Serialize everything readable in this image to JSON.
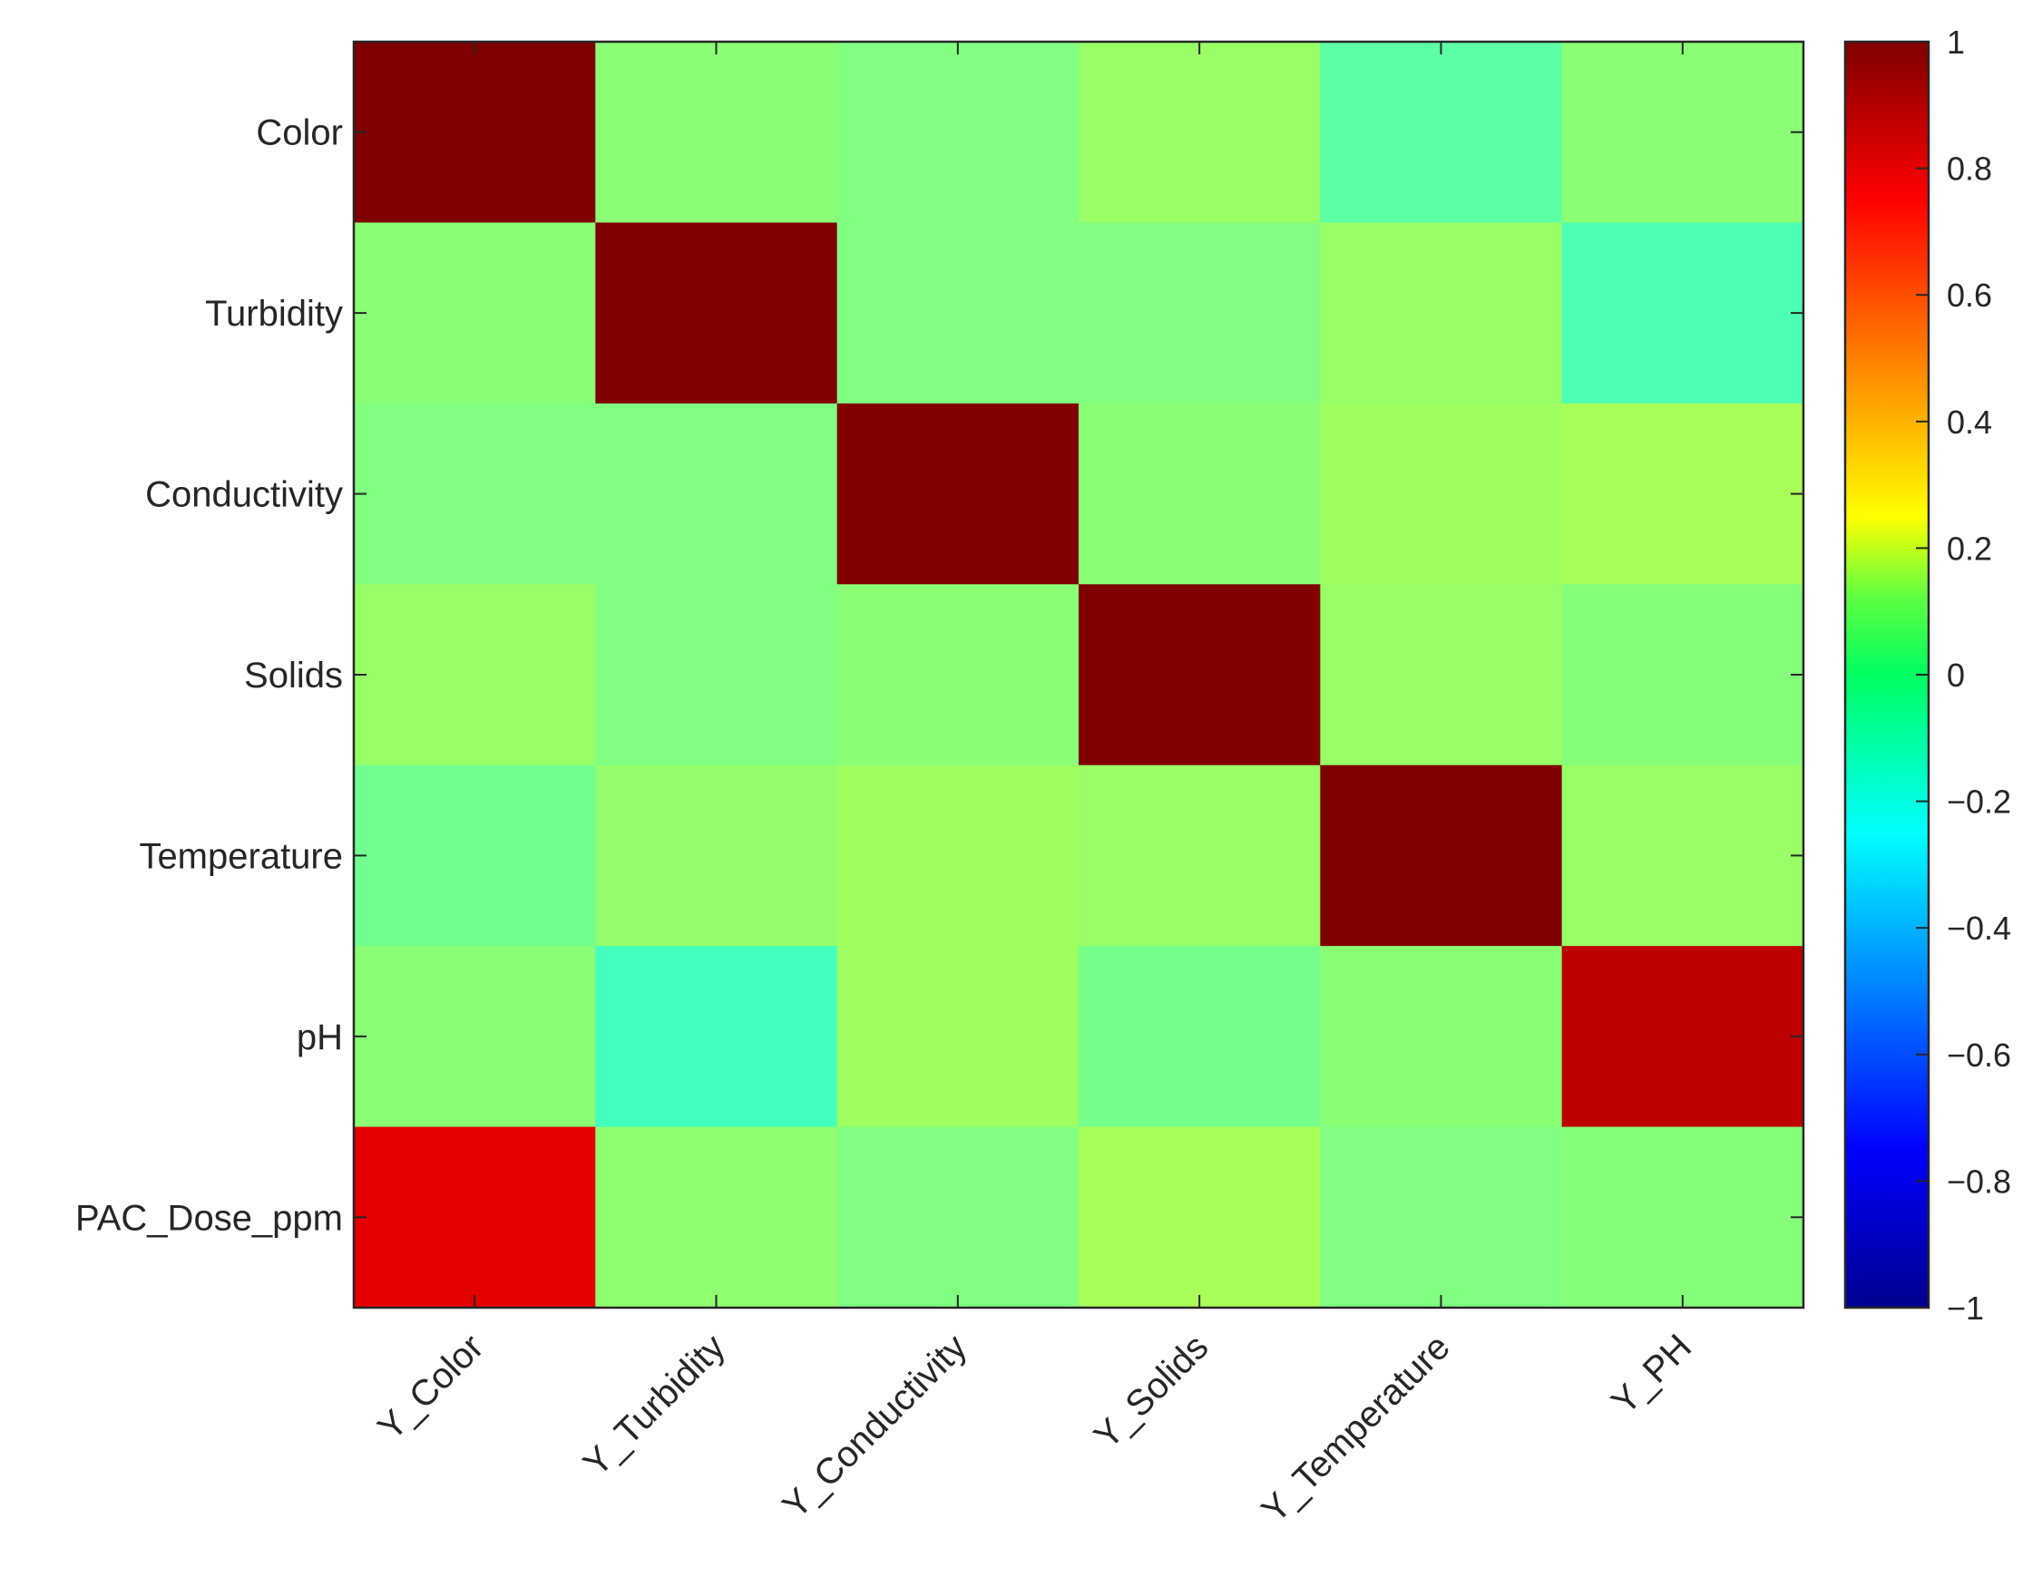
{
  "chart_data": {
    "type": "heatmap",
    "title": "",
    "xlabel": "",
    "ylabel": "",
    "rows": [
      "Color",
      "Turbidity",
      "Conductivity",
      "Solids",
      "Temperature",
      "pH",
      "PAC_Dose_ppm"
    ],
    "columns": [
      "Y_Color",
      "Y_Turbidity",
      "Y_Conductivity",
      "Y_Solids",
      "Y_Temperature",
      "Y_PH"
    ],
    "values": [
      [
        1.0,
        0.02,
        0.0,
        0.05,
        -0.07,
        0.02
      ],
      [
        0.02,
        1.0,
        0.0,
        0.0,
        0.05,
        -0.1
      ],
      [
        0.0,
        0.0,
        1.0,
        0.02,
        0.06,
        0.08
      ],
      [
        0.05,
        0.0,
        0.02,
        1.0,
        0.05,
        0.01
      ],
      [
        -0.03,
        0.04,
        0.06,
        0.05,
        1.0,
        0.05
      ],
      [
        0.02,
        -0.12,
        0.06,
        -0.02,
        0.02,
        0.88
      ],
      [
        0.8,
        0.03,
        0.0,
        0.08,
        0.0,
        0.01
      ]
    ],
    "colorbar": {
      "colormap": "jet",
      "clim": [
        -1,
        1
      ],
      "ticks": [
        1,
        0.8,
        0.6,
        0.4,
        0.2,
        0,
        -0.2,
        -0.4,
        -0.6,
        -0.8,
        -1
      ],
      "tick_labels": [
        "1",
        "0.8",
        "0.6",
        "0.4",
        "0.2",
        "0",
        "−0.2",
        "−0.4",
        "−0.6",
        "−0.8",
        "−1"
      ],
      "location": "right"
    },
    "grid": false
  }
}
